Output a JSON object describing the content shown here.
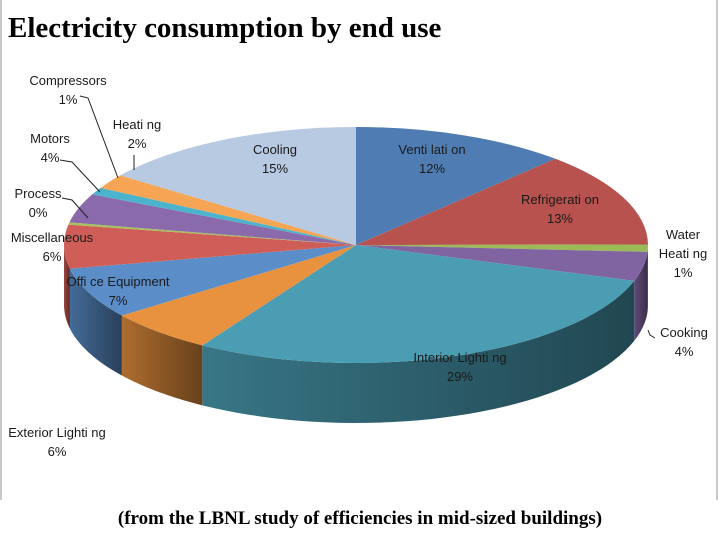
{
  "title": "Electricity consumption by end use",
  "footer": "(from the LBNL study of efficiencies in mid-sized buildings)",
  "chart_data": {
    "type": "pie",
    "style": "3d-exploded-none",
    "title": "Electricity consumption by end use",
    "start": "12 o'clock, clockwise",
    "slices": [
      {
        "label": "Venti lati on",
        "value": 12,
        "pct": "12%",
        "color": "#4f7db3"
      },
      {
        "label": "Refrigerati on",
        "value": 13,
        "pct": "13%",
        "color": "#b8524e"
      },
      {
        "label": "Water\nHeati ng",
        "value": 1,
        "pct": "1%",
        "color": "#9bbb59"
      },
      {
        "label": "Cooking",
        "value": 4,
        "pct": "4%",
        "color": "#8064a2"
      },
      {
        "label": "Interior Lighti ng",
        "value": 29,
        "pct": "29%",
        "color": "#4a9db3"
      },
      {
        "label": "Exterior Lighti ng",
        "value": 6,
        "pct": "6%",
        "color": "#e8913f"
      },
      {
        "label": "Offi ce Equipment",
        "value": 7,
        "pct": "7%",
        "color": "#5b8ec9"
      },
      {
        "label": "Miscellaneous",
        "value": 6,
        "pct": "6%",
        "color": "#cf5e58"
      },
      {
        "label": "Process",
        "value": 0.3,
        "pct": "0%",
        "color": "#a5c25e"
      },
      {
        "label": "Motors",
        "value": 4,
        "pct": "4%",
        "color": "#8a6aab"
      },
      {
        "label": "Compressors",
        "value": 1,
        "pct": "1%",
        "color": "#4bb3cc"
      },
      {
        "label": "Heati ng",
        "value": 2,
        "pct": "2%",
        "color": "#f5a553"
      },
      {
        "label": "Cooling",
        "value": 15,
        "pct": "15%",
        "color": "#b8c9e2"
      }
    ]
  }
}
